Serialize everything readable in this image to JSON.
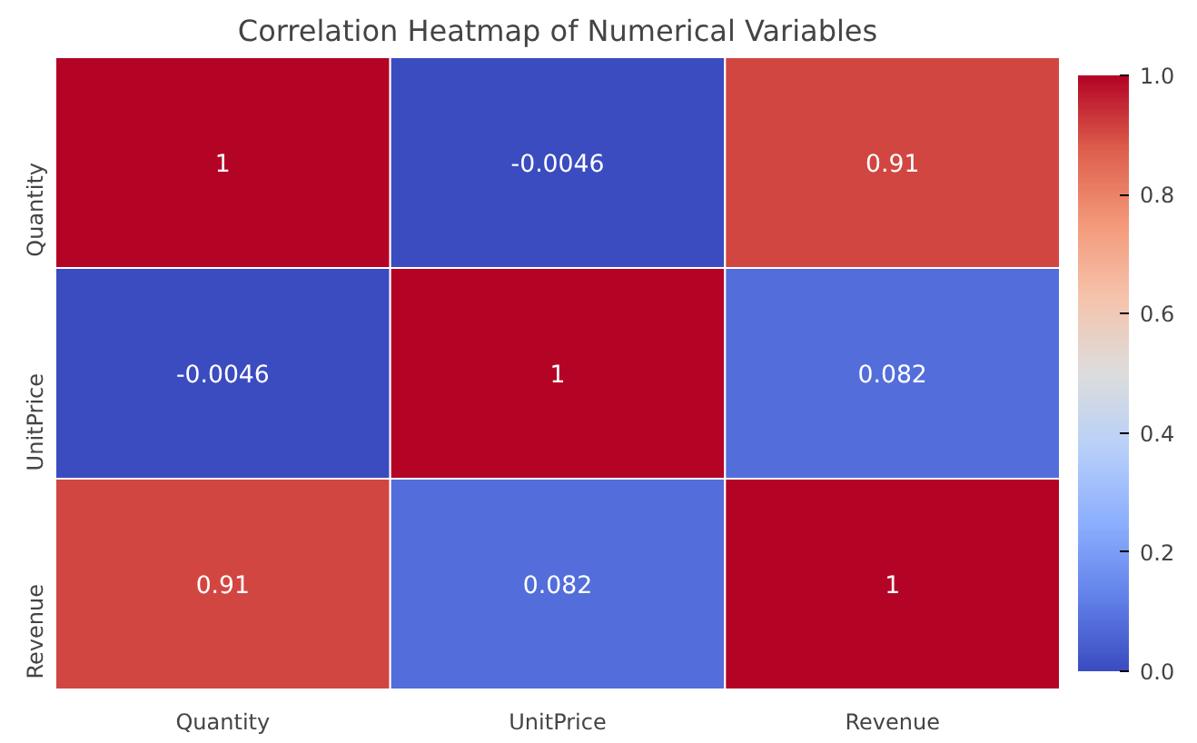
{
  "chart_data": {
    "type": "heatmap",
    "title": "Correlation Heatmap of Numerical Variables",
    "categories": [
      "Quantity",
      "UnitPrice",
      "Revenue"
    ],
    "y_categories": [
      "Quantity",
      "UnitPrice",
      "Revenue"
    ],
    "cells": [
      [
        1,
        -0.0046,
        0.91
      ],
      [
        -0.0046,
        1,
        0.082
      ],
      [
        0.91,
        0.082,
        1
      ]
    ],
    "data_labels": true,
    "clim": [
      0,
      1
    ],
    "cticks": [
      {
        "value": 0,
        "label": "0.0"
      },
      {
        "value": 0.2,
        "label": "0.2"
      },
      {
        "value": 0.4,
        "label": "0.4"
      },
      {
        "value": 0.6,
        "label": "0.6"
      },
      {
        "value": 0.8,
        "label": "0.8"
      },
      {
        "value": 1,
        "label": "1.0"
      }
    ]
  }
}
